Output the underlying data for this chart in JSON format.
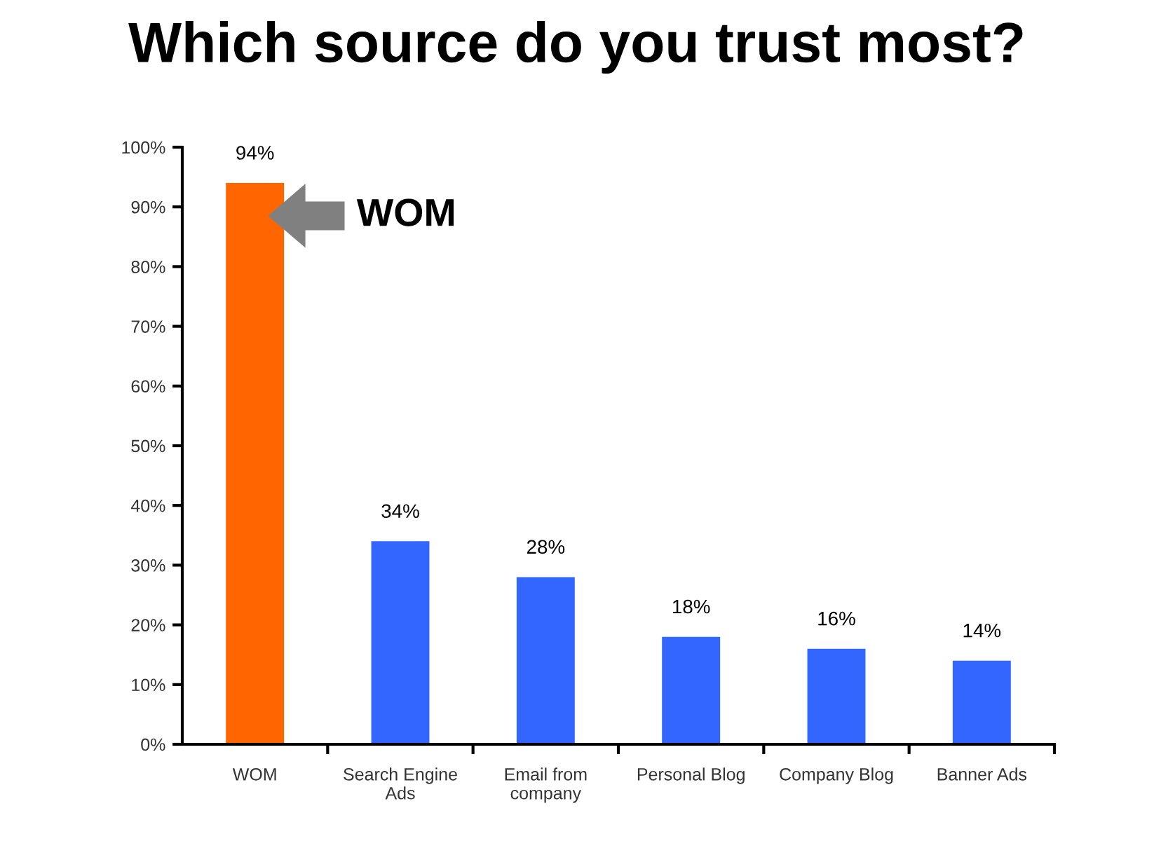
{
  "chart_data": {
    "type": "bar",
    "title": "Which source do you trust most?",
    "categories": [
      "WOM",
      "Search Engine\nAds",
      "Email from\ncompany",
      "Personal Blog",
      "Company Blog",
      "Banner Ads"
    ],
    "values": [
      94,
      34,
      28,
      18,
      16,
      14
    ],
    "colors": [
      "#ff6600",
      "#3366ff",
      "#3366ff",
      "#3366ff",
      "#3366ff",
      "#3366ff"
    ],
    "value_labels": [
      "94%",
      "34%",
      "28%",
      "18%",
      "16%",
      "14%"
    ],
    "ylim": [
      0,
      100
    ],
    "yticks": [
      {
        "value": 0,
        "label": "0%"
      },
      {
        "value": 10,
        "label": "10%"
      },
      {
        "value": 20,
        "label": "20%"
      },
      {
        "value": 30,
        "label": "30%"
      },
      {
        "value": 40,
        "label": "40%"
      },
      {
        "value": 50,
        "label": "50%"
      },
      {
        "value": 60,
        "label": "60%"
      },
      {
        "value": 70,
        "label": "70%"
      },
      {
        "value": 80,
        "label": "80%"
      },
      {
        "value": 90,
        "label": "90%"
      },
      {
        "value": 100,
        "label": "100%"
      }
    ],
    "annotations": [
      "WOM"
    ],
    "grid": false,
    "legend": false
  }
}
